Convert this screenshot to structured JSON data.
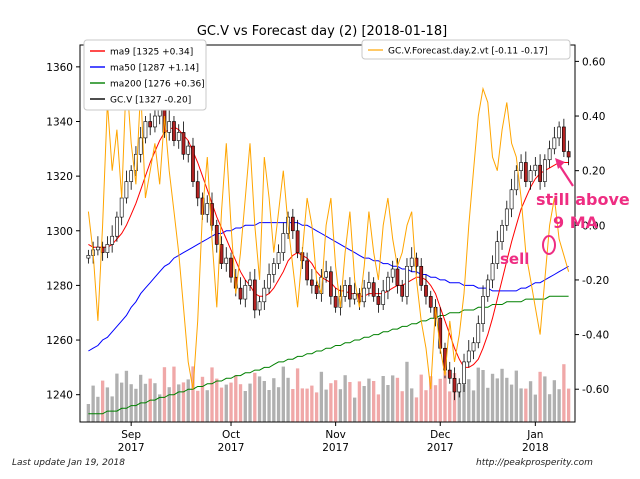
{
  "chart_data": {
    "type": "candlestick",
    "title": "GC.V vs Forecast day (2)  [2018-01-18]",
    "y_left": {
      "ylim": [
        1230,
        1368
      ],
      "ticks": [
        1240,
        1260,
        1280,
        1300,
        1320,
        1340,
        1360
      ]
    },
    "y_right": {
      "ylim": [
        -0.72,
        0.66
      ],
      "ticks": [
        "-0.60",
        "-0.40",
        "-0.20",
        "0.00",
        "0.20",
        "0.40",
        "0.60"
      ],
      "tick_values": [
        -0.6,
        -0.4,
        -0.2,
        0.0,
        0.2,
        0.4,
        0.6
      ]
    },
    "x_ticks": [
      {
        "label": "Sep",
        "year": "2017",
        "index": 9
      },
      {
        "label": "Oct",
        "year": "2017",
        "index": 30
      },
      {
        "label": "Nov",
        "year": "2017",
        "index": 52
      },
      {
        "label": "Dec",
        "year": "2017",
        "index": 74
      },
      {
        "label": "Jan",
        "year": "2018",
        "index": 94
      }
    ],
    "legend_left": [
      {
        "label": "ma9 [1325 +0.34]",
        "color": "#ff0000"
      },
      {
        "label": "ma50 [1287 +1.14]",
        "color": "#0000ff"
      },
      {
        "label": "ma200 [1276 +0.36]",
        "color": "#008000"
      },
      {
        "label": "GC.V [1327 -0.20]",
        "color": "#000000"
      }
    ],
    "legend_right": [
      {
        "label": "GC.V.Forecast.day.2.vt [-0.11 -0.17]",
        "color": "#ffa500"
      }
    ],
    "close": [
      1291,
      1293,
      1294,
      1292,
      1295,
      1298,
      1305,
      1312,
      1318,
      1322,
      1328,
      1334,
      1340,
      1338,
      1342,
      1345,
      1336,
      1340,
      1333,
      1336,
      1328,
      1331,
      1318,
      1312,
      1306,
      1310,
      1302,
      1295,
      1288,
      1290,
      1283,
      1279,
      1275,
      1280,
      1282,
      1271,
      1274,
      1279,
      1284,
      1288,
      1292,
      1299,
      1305,
      1300,
      1292,
      1289,
      1282,
      1280,
      1277,
      1283,
      1285,
      1276,
      1272,
      1276,
      1280,
      1275,
      1277,
      1274,
      1279,
      1281,
      1276,
      1273,
      1278,
      1283,
      1286,
      1280,
      1276,
      1287,
      1290,
      1287,
      1280,
      1276,
      1272,
      1268,
      1257,
      1249,
      1246,
      1241,
      1244,
      1252,
      1256,
      1259,
      1266,
      1276,
      1282,
      1288,
      1296,
      1302,
      1308,
      1315,
      1322,
      1325,
      1318,
      1322,
      1324,
      1318,
      1326,
      1330,
      1334,
      1338,
      1329,
      1327
    ],
    "ma9": [
      1295,
      1294,
      1294,
      1294,
      1294,
      1295,
      1297,
      1299,
      1302,
      1306,
      1310,
      1315,
      1320,
      1325,
      1329,
      1333,
      1336,
      1337,
      1338,
      1337,
      1335,
      1333,
      1329,
      1325,
      1320,
      1315,
      1310,
      1305,
      1301,
      1297,
      1293,
      1289,
      1285,
      1282,
      1280,
      1277,
      1276,
      1276,
      1277,
      1279,
      1282,
      1285,
      1289,
      1291,
      1292,
      1291,
      1290,
      1288,
      1285,
      1283,
      1282,
      1281,
      1279,
      1278,
      1278,
      1277,
      1277,
      1276,
      1276,
      1277,
      1277,
      1277,
      1277,
      1278,
      1279,
      1280,
      1280,
      1281,
      1282,
      1283,
      1283,
      1282,
      1280,
      1277,
      1272,
      1267,
      1262,
      1257,
      1253,
      1250,
      1250,
      1251,
      1253,
      1257,
      1262,
      1268,
      1275,
      1282,
      1289,
      1296,
      1302,
      1308,
      1312,
      1316,
      1319,
      1321,
      1322,
      1323,
      1324,
      1325,
      1325,
      1325
    ],
    "ma50": [
      1256,
      1257,
      1258,
      1260,
      1261,
      1263,
      1265,
      1267,
      1269,
      1272,
      1274,
      1277,
      1279,
      1281,
      1283,
      1285,
      1287,
      1288,
      1290,
      1291,
      1292,
      1293,
      1294,
      1295,
      1296,
      1297,
      1298,
      1299,
      1299,
      1300,
      1300,
      1301,
      1301,
      1302,
      1302,
      1302,
      1303,
      1303,
      1303,
      1303,
      1303,
      1303,
      1303,
      1303,
      1303,
      1302,
      1302,
      1301,
      1300,
      1299,
      1298,
      1297,
      1296,
      1295,
      1294,
      1293,
      1292,
      1291,
      1290,
      1290,
      1289,
      1289,
      1288,
      1288,
      1287,
      1287,
      1286,
      1286,
      1285,
      1285,
      1284,
      1284,
      1283,
      1283,
      1282,
      1282,
      1281,
      1281,
      1281,
      1280,
      1280,
      1280,
      1279,
      1279,
      1279,
      1278,
      1278,
      1278,
      1278,
      1278,
      1278,
      1279,
      1279,
      1280,
      1281,
      1281,
      1282,
      1283,
      1284,
      1285,
      1286,
      1287
    ],
    "ma200": [
      1233,
      1233,
      1233,
      1233,
      1234,
      1234,
      1234,
      1235,
      1235,
      1236,
      1236,
      1237,
      1237,
      1238,
      1238,
      1239,
      1239,
      1240,
      1240,
      1241,
      1241,
      1242,
      1242,
      1243,
      1243,
      1244,
      1244,
      1245,
      1245,
      1246,
      1246,
      1247,
      1247,
      1248,
      1248,
      1249,
      1249,
      1250,
      1250,
      1251,
      1252,
      1252,
      1253,
      1253,
      1254,
      1254,
      1255,
      1255,
      1256,
      1256,
      1257,
      1257,
      1258,
      1258,
      1259,
      1259,
      1260,
      1260,
      1261,
      1261,
      1262,
      1262,
      1263,
      1263,
      1264,
      1264,
      1265,
      1265,
      1266,
      1266,
      1267,
      1267,
      1268,
      1268,
      1269,
      1269,
      1270,
      1270,
      1270,
      1271,
      1271,
      1271,
      1272,
      1272,
      1272,
      1273,
      1273,
      1273,
      1274,
      1274,
      1274,
      1274,
      1275,
      1275,
      1275,
      1275,
      1275,
      1276,
      1276,
      1276,
      1276,
      1276
    ],
    "forecast": [
      0.05,
      -0.1,
      -0.35,
      0.0,
      0.45,
      0.2,
      0.35,
      0.1,
      0.55,
      0.3,
      0.15,
      0.5,
      0.1,
      0.2,
      0.3,
      0.15,
      0.4,
      0.2,
      0.05,
      -0.1,
      -0.3,
      -0.5,
      -0.6,
      -0.35,
      0.05,
      0.25,
      -0.05,
      -0.3,
      0.05,
      0.3,
      0.0,
      -0.25,
      -0.1,
      0.1,
      0.3,
      0.0,
      -0.2,
      0.25,
      0.1,
      -0.1,
      0.05,
      0.2,
      0.0,
      -0.15,
      -0.3,
      -0.1,
      0.1,
      0.0,
      -0.2,
      -0.25,
      0.0,
      0.1,
      -0.15,
      -0.3,
      -0.1,
      0.05,
      -0.2,
      -0.3,
      -0.15,
      0.05,
      -0.1,
      -0.2,
      0.0,
      0.1,
      -0.05,
      -0.15,
      -0.1,
      0.0,
      0.05,
      -0.2,
      -0.35,
      -0.45,
      -0.6,
      -0.3,
      -0.45,
      -0.55,
      -0.35,
      -0.5,
      -0.4,
      -0.25,
      0.0,
      0.2,
      0.4,
      0.5,
      0.45,
      0.25,
      0.2,
      0.35,
      0.45,
      0.3,
      0.25,
      0.1,
      -0.1,
      -0.2,
      -0.3,
      -0.4,
      -0.2,
      0.0,
      0.1,
      -0.05,
      -0.11,
      -0.17
    ],
    "annotations": [
      {
        "text": "still above",
        "color": "#ee2d82"
      },
      {
        "text": "9 MA",
        "color": "#ee2d82"
      },
      {
        "text": "sell",
        "color": "#ee2d82"
      }
    ]
  },
  "footer": {
    "left": "Last update Jan 19, 2018",
    "right": "http://peakprosperity.com"
  }
}
